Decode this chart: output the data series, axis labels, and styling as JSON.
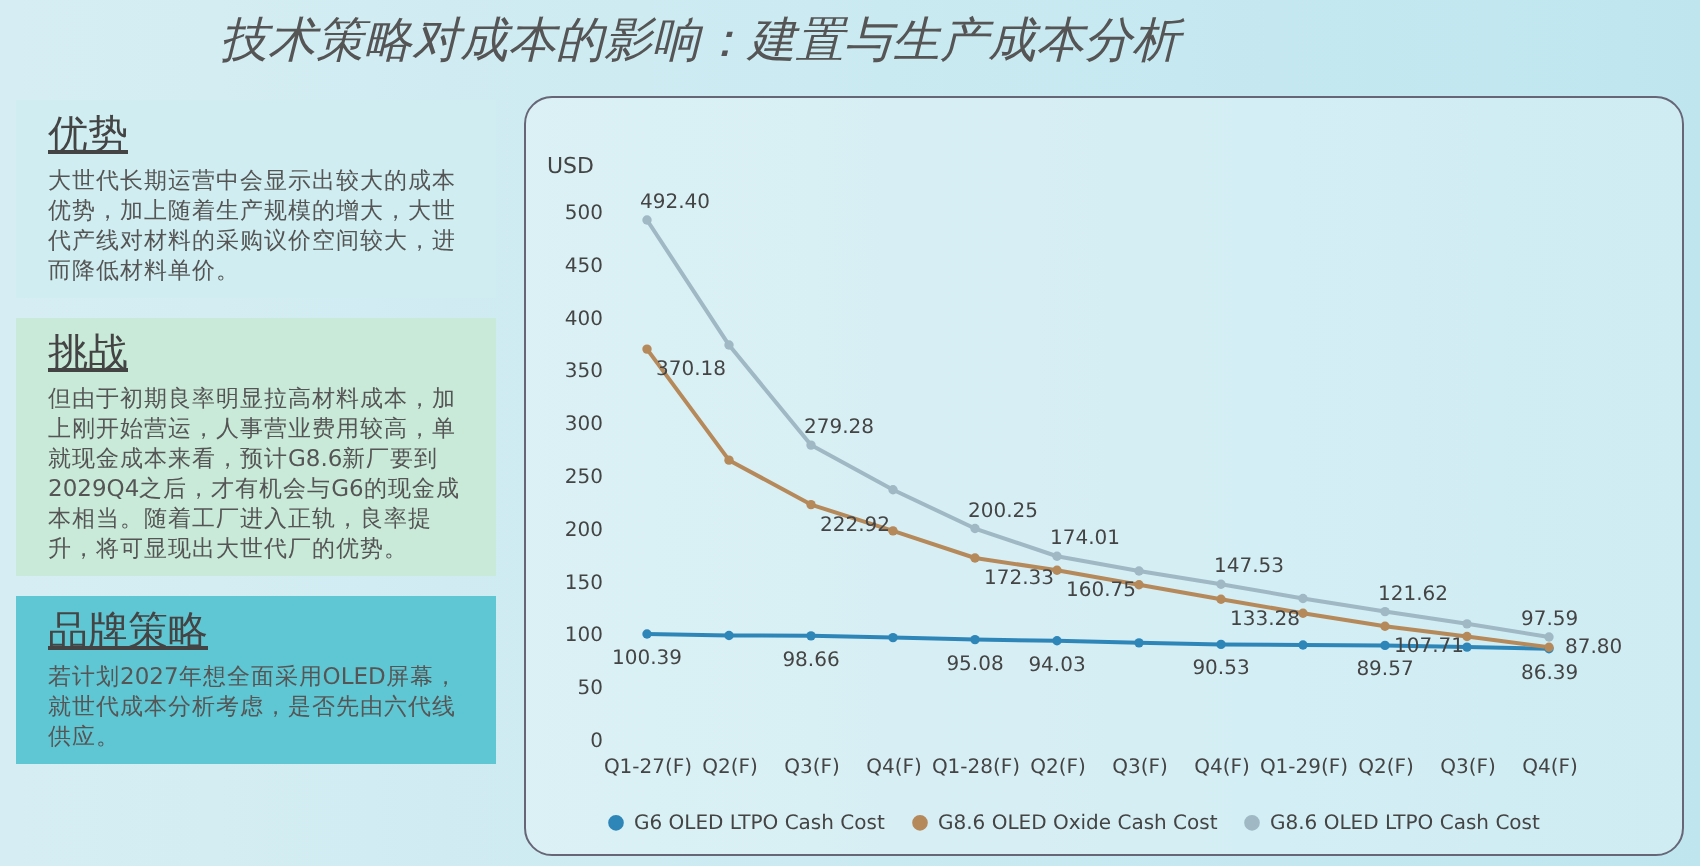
{
  "chart_data": {
    "type": "line",
    "title": "技术策略对成本的影响：建置与生产成本分析",
    "ylabel": "USD",
    "annotations": [
      "优势",
      "大世代长期运营中会显示出较大的成本优势，加上随着生产规模的增大，大世代产线对材料的采购议价空间较大，进而降低材料单价。",
      "挑战",
      "但由于初期良率明显拉高材料成本，加上刚开始营运，人事营业费用较高，单就现金成本来看，预计G8.6新厂要到2029Q4之后，才有机会与G6的现金成本相当。随着工厂进入正轨，良率提升，将可显现出大世代厂的优势。",
      "品牌策略",
      "若计划2027年想全面采用OLED屏幕，就世代成本分析考虑，是否先由六代线供应。"
    ],
    "categories": [
      "Q1-27(F)",
      "Q2(F)",
      "Q3(F)",
      "Q4(F)",
      "Q1-28(F)",
      "Q2(F)",
      "Q3(F)",
      "Q4(F)",
      "Q1-29(F)",
      "Q2(F)",
      "Q3(F)",
      "Q4(F)"
    ],
    "series": [
      {
        "name": "G6 OLED LTPO Cash Cost",
        "color": "#2e86b8",
        "values": [
          100.39,
          99,
          98.66,
          97,
          95.08,
          94.03,
          92,
          90.53,
          90,
          89.57,
          88,
          86.39
        ],
        "value_labels": [
          "100.39",
          null,
          "98.66",
          null,
          "95.08",
          "94.03",
          null,
          "90.53",
          null,
          "89.57",
          null,
          "86.39"
        ]
      },
      {
        "name": "G8.6 OLED Oxide Cash Cost",
        "color": "#b5895a",
        "values": [
          370.18,
          265,
          222.92,
          198,
          172.33,
          160.75,
          147,
          133.28,
          120,
          107.71,
          98,
          87.8
        ],
        "value_labels": [
          "370.18",
          null,
          "222.92",
          null,
          "172.33",
          "160.75",
          null,
          "133.28",
          null,
          "107.71",
          null,
          "87.80"
        ]
      },
      {
        "name": "G8.6 OLED LTPO Cash Cost",
        "color": "#9fb8c4",
        "values": [
          492.4,
          374,
          279.28,
          237,
          200.25,
          174.01,
          160,
          147.53,
          134,
          121.62,
          110,
          97.59
        ],
        "value_labels": [
          "492.40",
          null,
          "279.28",
          null,
          "200.25",
          "174.01",
          null,
          "147.53",
          null,
          "121.62",
          null,
          "97.59"
        ]
      }
    ],
    "ylim": [
      0,
      500
    ],
    "yticks": [
      0,
      50,
      100,
      150,
      200,
      250,
      300,
      350,
      400,
      450,
      500
    ],
    "grid": false,
    "legend": "bottom",
    "marker": "circle",
    "line_style": "solid"
  }
}
